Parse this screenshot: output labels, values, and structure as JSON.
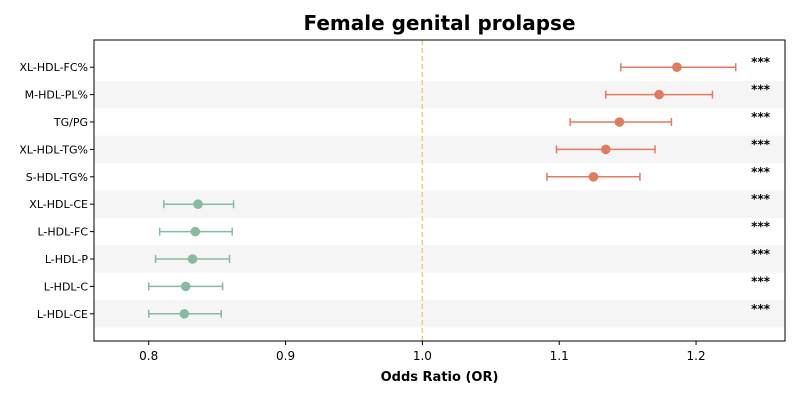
{
  "chart_data": {
    "type": "forest",
    "title": "Female genital prolapse",
    "xlabel": "Odds Ratio (OR)",
    "xlim": [
      0.76,
      1.265
    ],
    "xticks": [
      0.8,
      0.9,
      1.0,
      1.1,
      1.2
    ],
    "xtick_labels": [
      "0.8",
      "0.9",
      "1.0",
      "1.1",
      "1.2"
    ],
    "reference_line": 1.0,
    "row_shading": "alternating",
    "colors": {
      "positive": "#e07b5e",
      "negative": "#86bba1",
      "reference": "#f3c97a",
      "shade": "#f5f5f5"
    },
    "rows": [
      {
        "label": "XL-HDL-FC%",
        "or": 1.186,
        "lo": 1.145,
        "hi": 1.229,
        "sig": "***"
      },
      {
        "label": "M-HDL-PL%",
        "or": 1.173,
        "lo": 1.134,
        "hi": 1.212,
        "sig": "***"
      },
      {
        "label": "TG/PG",
        "or": 1.144,
        "lo": 1.108,
        "hi": 1.182,
        "sig": "***"
      },
      {
        "label": "XL-HDL-TG%",
        "or": 1.134,
        "lo": 1.098,
        "hi": 1.17,
        "sig": "***"
      },
      {
        "label": "S-HDL-TG%",
        "or": 1.125,
        "lo": 1.091,
        "hi": 1.159,
        "sig": "***"
      },
      {
        "label": "XL-HDL-CE",
        "or": 0.836,
        "lo": 0.811,
        "hi": 0.862,
        "sig": "***"
      },
      {
        "label": "L-HDL-FC",
        "or": 0.834,
        "lo": 0.808,
        "hi": 0.861,
        "sig": "***"
      },
      {
        "label": "L-HDL-P",
        "or": 0.832,
        "lo": 0.805,
        "hi": 0.859,
        "sig": "***"
      },
      {
        "label": "L-HDL-C",
        "or": 0.827,
        "lo": 0.8,
        "hi": 0.854,
        "sig": "***"
      },
      {
        "label": "L-HDL-CE",
        "or": 0.826,
        "lo": 0.8,
        "hi": 0.853,
        "sig": "***"
      }
    ]
  }
}
